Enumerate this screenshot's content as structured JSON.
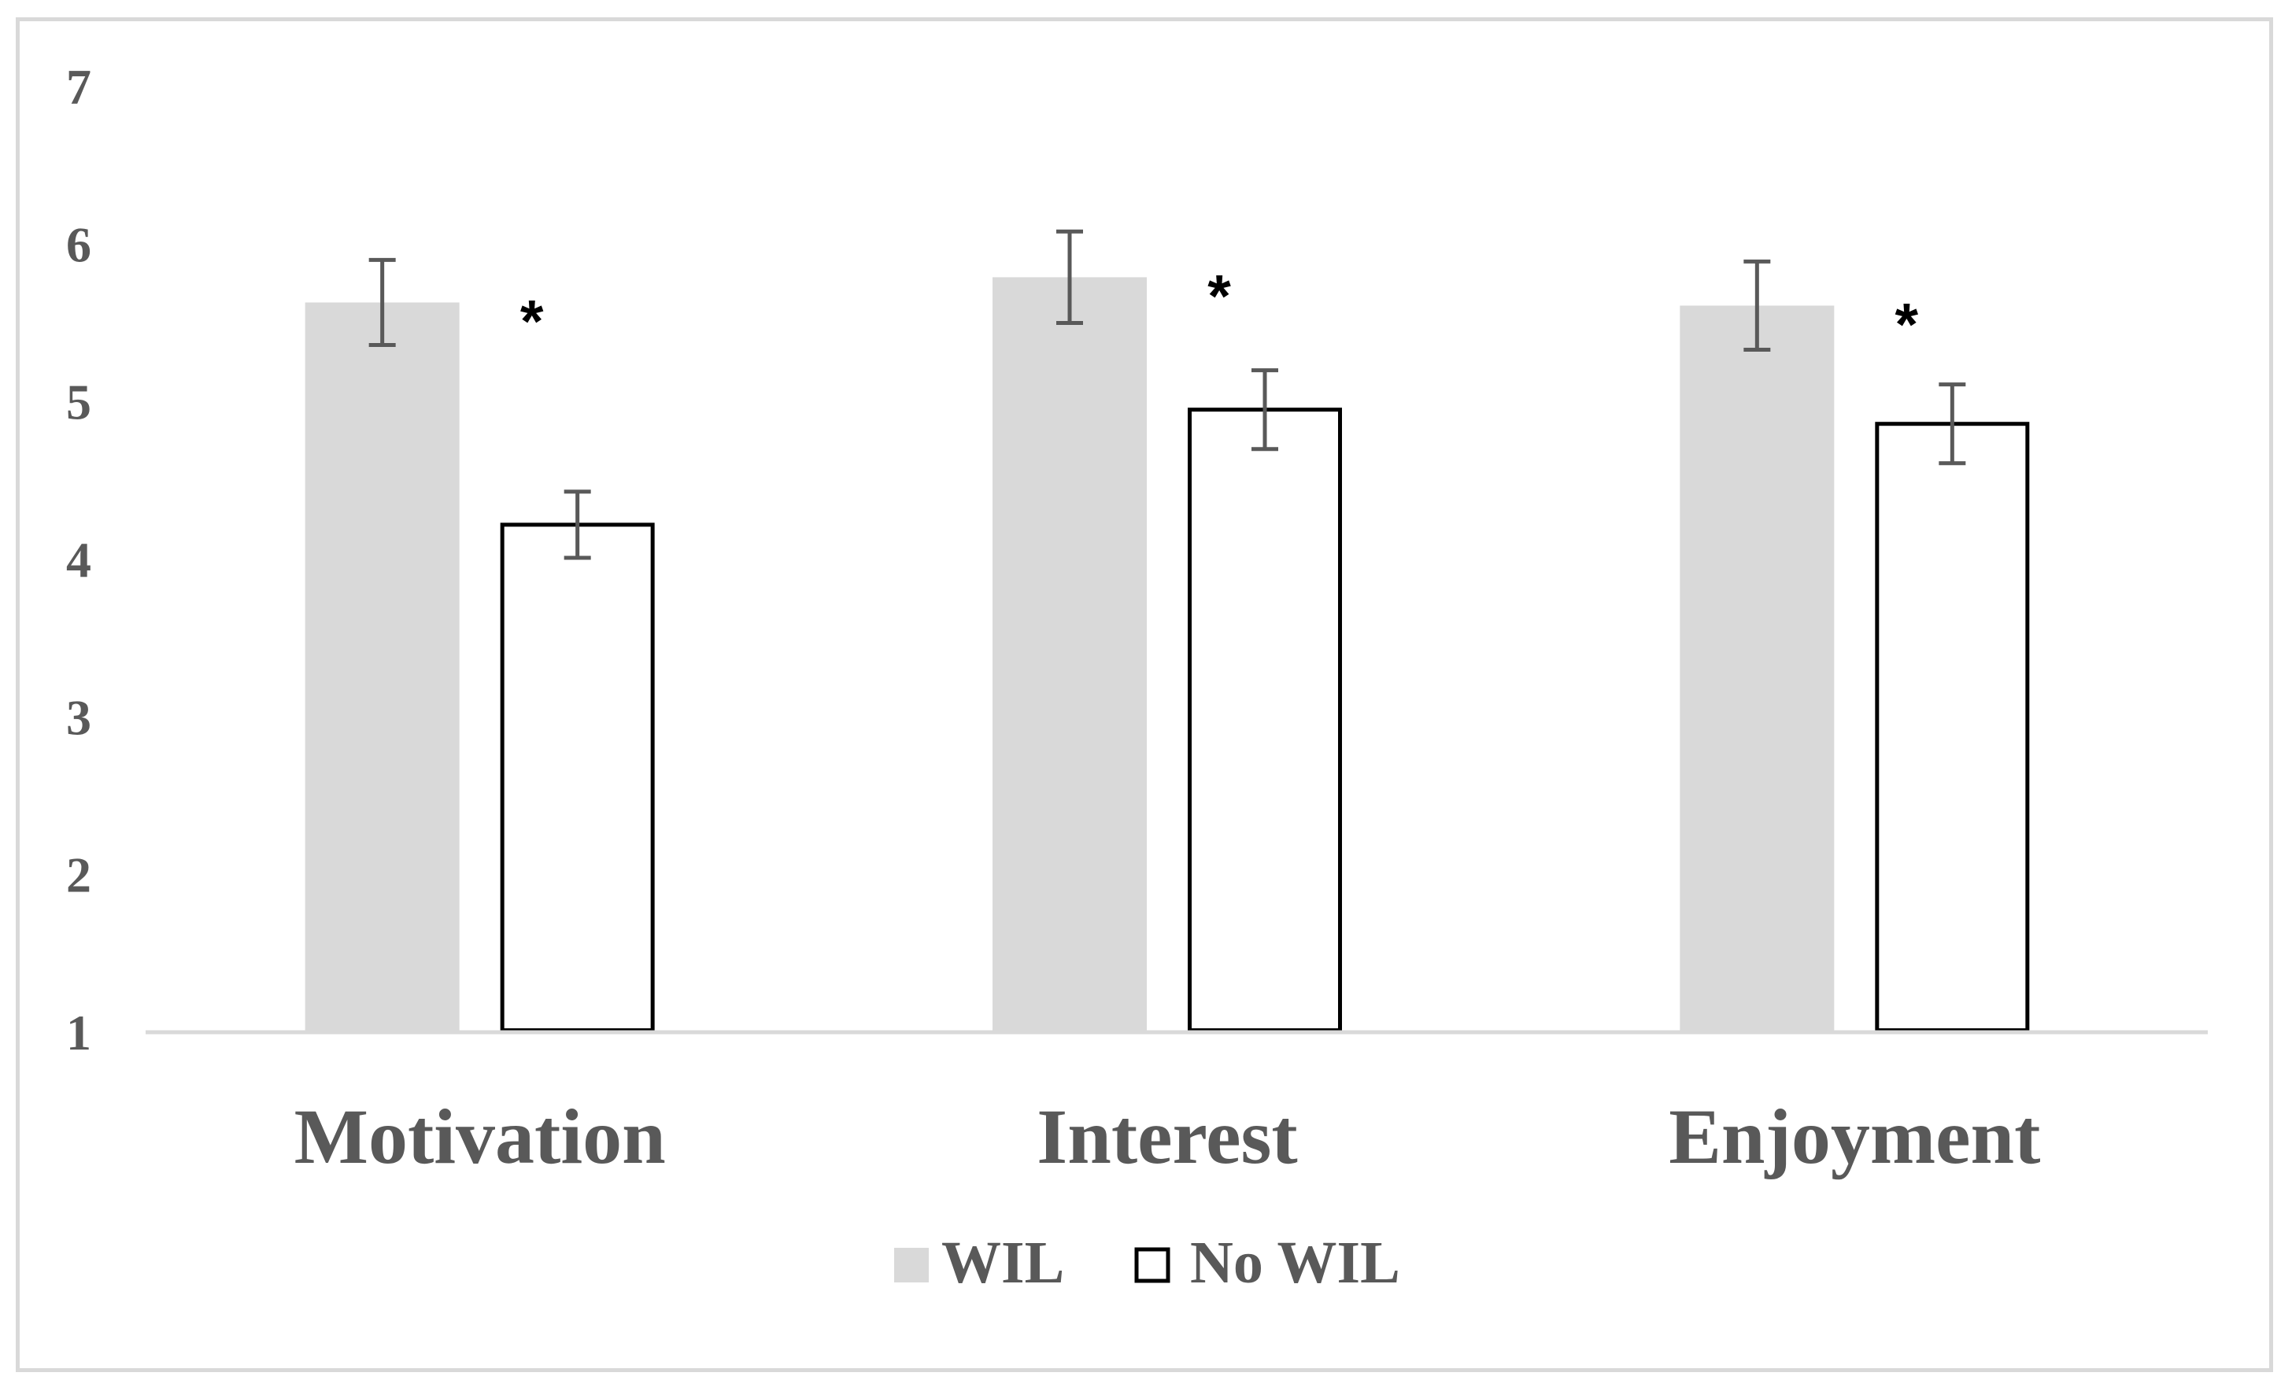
{
  "chart_data": {
    "type": "bar",
    "title": "",
    "xlabel": "",
    "ylabel": "",
    "ylim": [
      1,
      7
    ],
    "yticks": [
      "1",
      "2",
      "3",
      "4",
      "5",
      "6",
      "7"
    ],
    "categories": [
      "Motivation",
      "Interest",
      "Enjoyment"
    ],
    "series": [
      {
        "name": "WIL",
        "values": [
          5.63,
          5.79,
          5.61
        ],
        "error": [
          0.27,
          0.29,
          0.28
        ],
        "fill": "#d9d9d9",
        "stroke": "none"
      },
      {
        "name": "No WIL",
        "values": [
          4.22,
          4.95,
          4.86
        ],
        "error": [
          0.21,
          0.25,
          0.25
        ],
        "fill": "#ffffff",
        "stroke": "#000000"
      }
    ],
    "significance": [
      "*",
      "*",
      "*"
    ],
    "legend": {
      "placement": "bottom",
      "items": [
        "WIL",
        "No WIL"
      ]
    },
    "grid": false
  }
}
